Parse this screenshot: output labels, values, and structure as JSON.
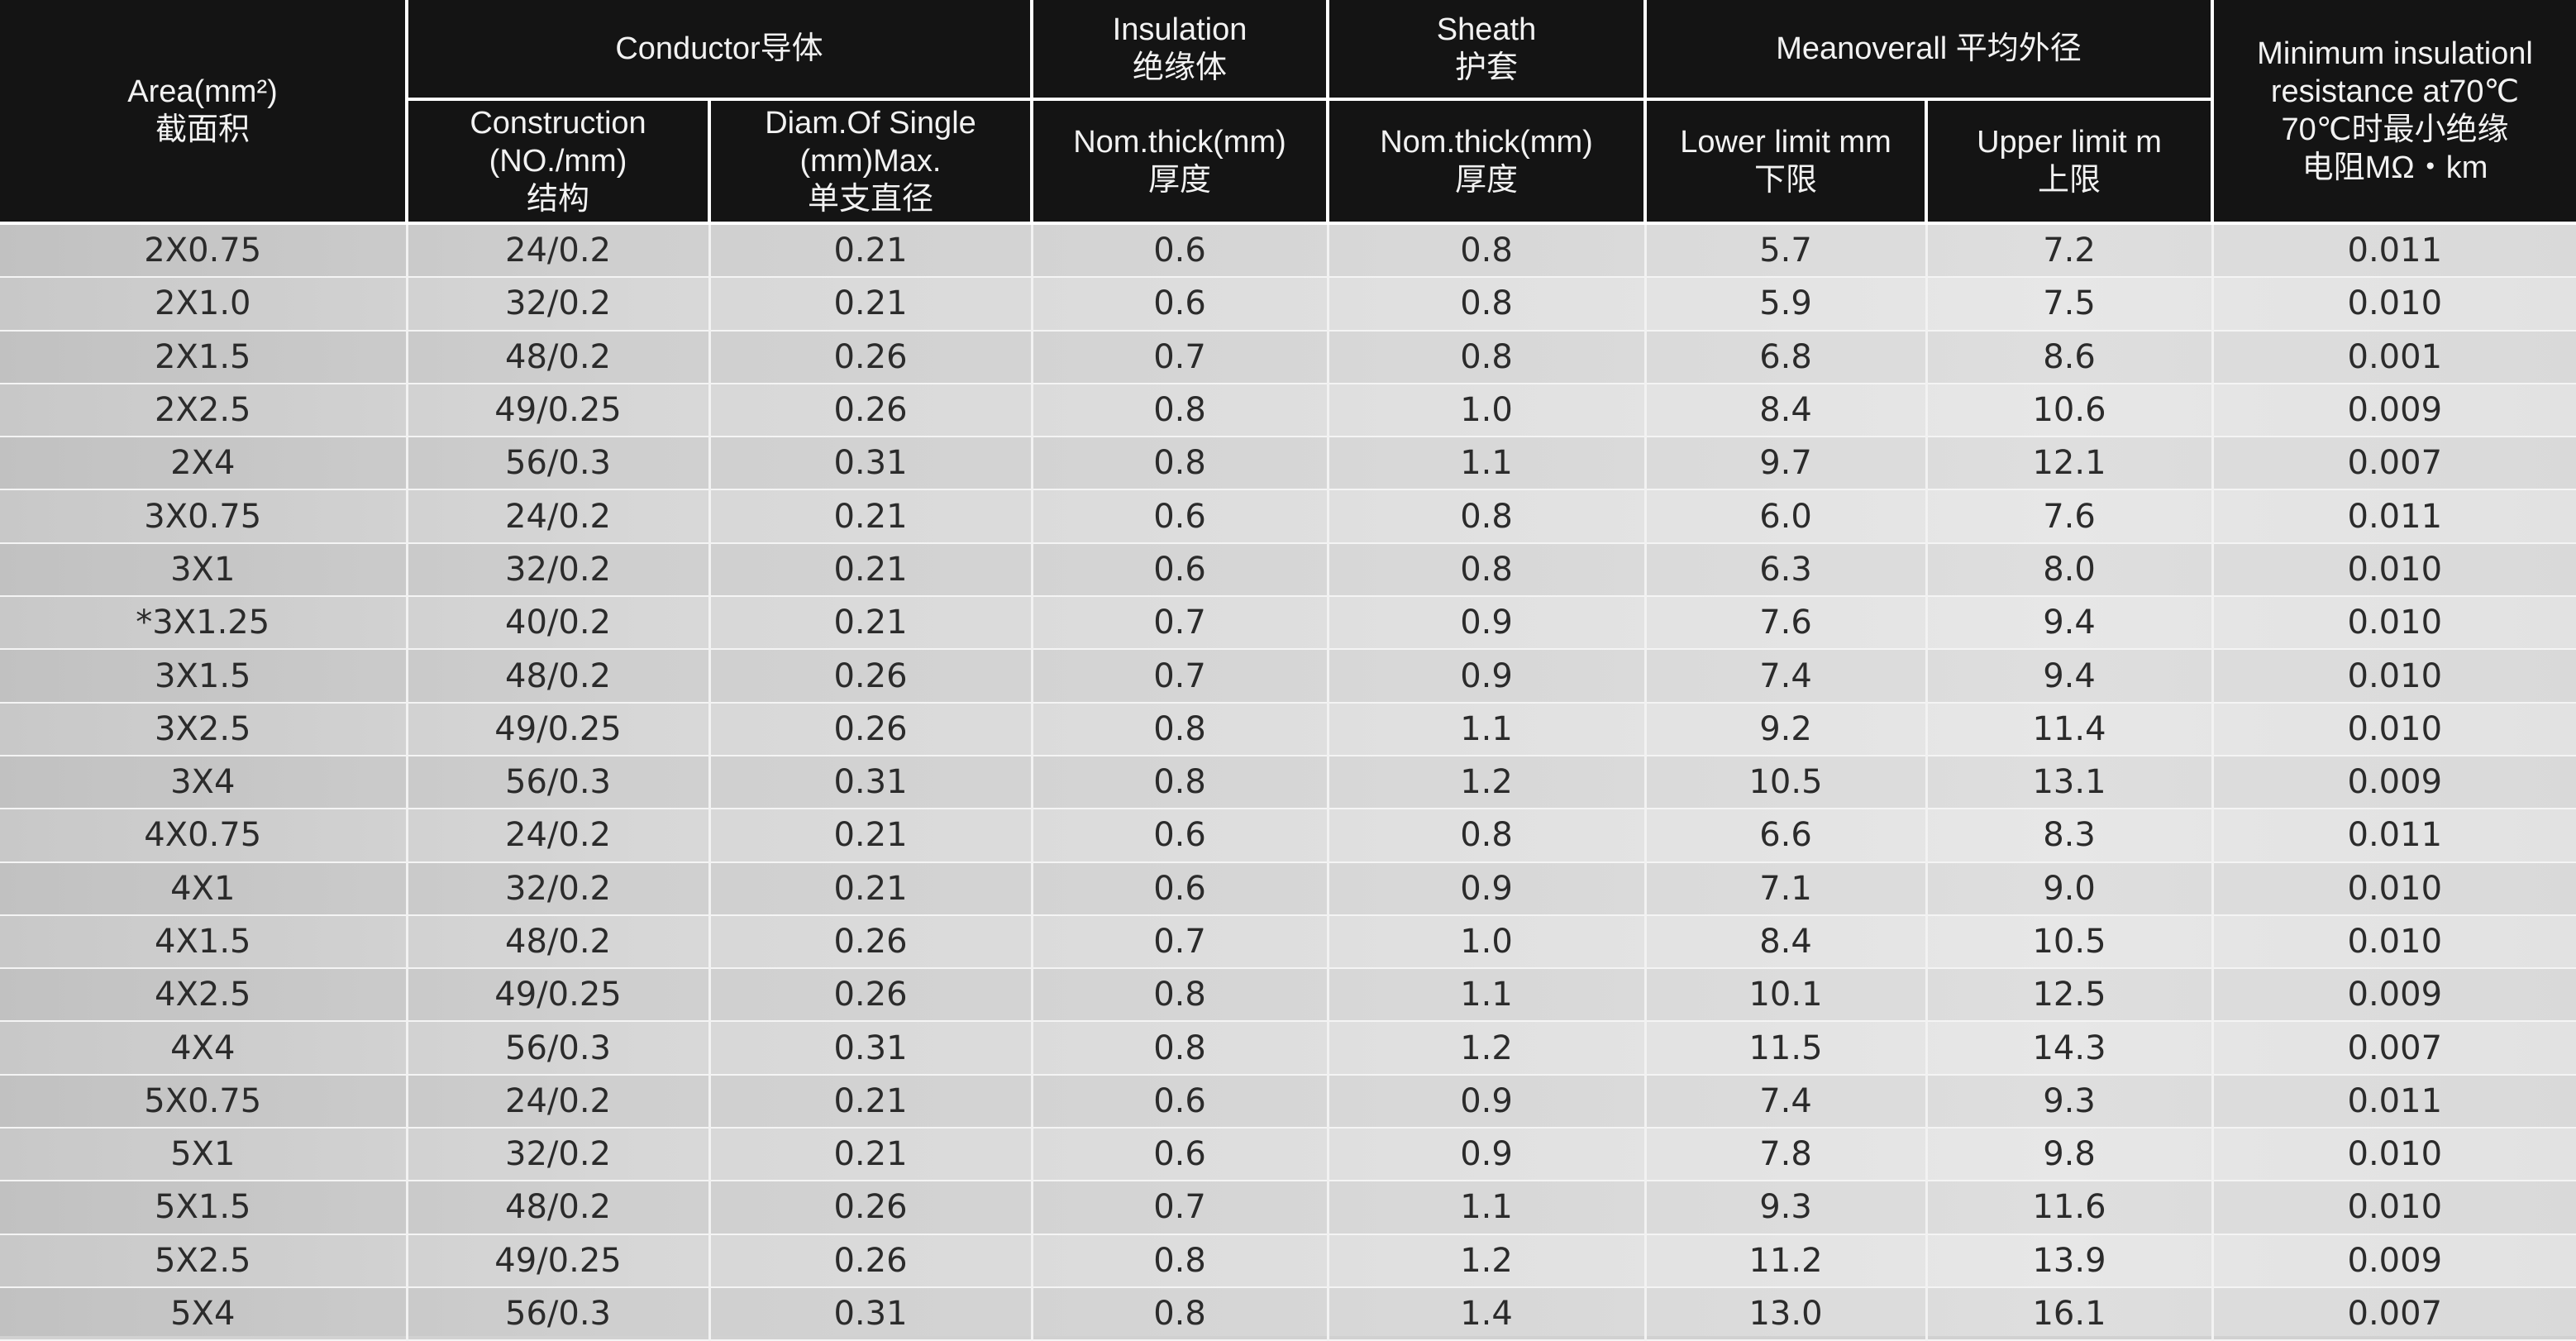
{
  "header": {
    "area": [
      "Area(mm²)",
      "截面积"
    ],
    "conductor": "Conductor导体",
    "insulation": [
      "Insulation",
      "绝缘体"
    ],
    "sheath": [
      "Sheath",
      "护套"
    ],
    "meanoverall": "Meanoverall  平均外径",
    "min_resistance": [
      "Minimum insulationl",
      "resistance at70℃",
      "70℃时最小绝缘",
      "电阻MΩ・km"
    ],
    "construction": [
      "Construction",
      "(NO./mm)",
      "结构"
    ],
    "diam_single": [
      "Diam.Of Single",
      "(mm)Max.",
      "单支直径"
    ],
    "ins_thick": [
      "Nom.thick(mm)",
      "厚度"
    ],
    "sheath_thick": [
      "Nom.thick(mm)",
      "厚度"
    ],
    "lower_limit": [
      "Lower limit mm",
      "下限"
    ],
    "upper_limit": [
      "Upper limit m",
      "上限"
    ]
  },
  "rows": [
    [
      "2X0.75",
      "24/0.2",
      "0.21",
      "0.6",
      "0.8",
      "5.7",
      "7.2",
      "0.011"
    ],
    [
      "2X1.0",
      "32/0.2",
      "0.21",
      "0.6",
      "0.8",
      "5.9",
      "7.5",
      "0.010"
    ],
    [
      "2X1.5",
      "48/0.2",
      "0.26",
      "0.7",
      "0.8",
      "6.8",
      "8.6",
      "0.001"
    ],
    [
      "2X2.5",
      "49/0.25",
      "0.26",
      "0.8",
      "1.0",
      "8.4",
      "10.6",
      "0.009"
    ],
    [
      "2X4",
      "56/0.3",
      "0.31",
      "0.8",
      "1.1",
      "9.7",
      "12.1",
      "0.007"
    ],
    [
      "3X0.75",
      "24/0.2",
      "0.21",
      "0.6",
      "0.8",
      "6.0",
      "7.6",
      "0.011"
    ],
    [
      "3X1",
      "32/0.2",
      "0.21",
      "0.6",
      "0.8",
      "6.3",
      "8.0",
      "0.010"
    ],
    [
      "*3X1.25",
      "40/0.2",
      "0.21",
      "0.7",
      "0.9",
      "7.6",
      "9.4",
      "0.010"
    ],
    [
      "3X1.5",
      "48/0.2",
      "0.26",
      "0.7",
      "0.9",
      "7.4",
      "9.4",
      "0.010"
    ],
    [
      "3X2.5",
      "49/0.25",
      "0.26",
      "0.8",
      "1.1",
      "9.2",
      "11.4",
      "0.010"
    ],
    [
      "3X4",
      "56/0.3",
      "0.31",
      "0.8",
      "1.2",
      "10.5",
      "13.1",
      "0.009"
    ],
    [
      "4X0.75",
      "24/0.2",
      "0.21",
      "0.6",
      "0.8",
      "6.6",
      "8.3",
      "0.011"
    ],
    [
      "4X1",
      "32/0.2",
      "0.21",
      "0.6",
      "0.9",
      "7.1",
      "9.0",
      "0.010"
    ],
    [
      "4X1.5",
      "48/0.2",
      "0.26",
      "0.7",
      "1.0",
      "8.4",
      "10.5",
      "0.010"
    ],
    [
      "4X2.5",
      "49/0.25",
      "0.26",
      "0.8",
      "1.1",
      "10.1",
      "12.5",
      "0.009"
    ],
    [
      "4X4",
      "56/0.3",
      "0.31",
      "0.8",
      "1.2",
      "11.5",
      "14.3",
      "0.007"
    ],
    [
      "5X0.75",
      "24/0.2",
      "0.21",
      "0.6",
      "0.9",
      "7.4",
      "9.3",
      "0.011"
    ],
    [
      "5X1",
      "32/0.2",
      "0.21",
      "0.6",
      "0.9",
      "7.8",
      "9.8",
      "0.010"
    ],
    [
      "5X1.5",
      "48/0.2",
      "0.26",
      "0.7",
      "1.1",
      "9.3",
      "11.6",
      "0.010"
    ],
    [
      "5X2.5",
      "49/0.25",
      "0.26",
      "0.8",
      "1.2",
      "11.2",
      "13.9",
      "0.009"
    ],
    [
      "5X4",
      "56/0.3",
      "0.31",
      "0.8",
      "1.4",
      "13.0",
      "16.1",
      "0.007"
    ]
  ]
}
